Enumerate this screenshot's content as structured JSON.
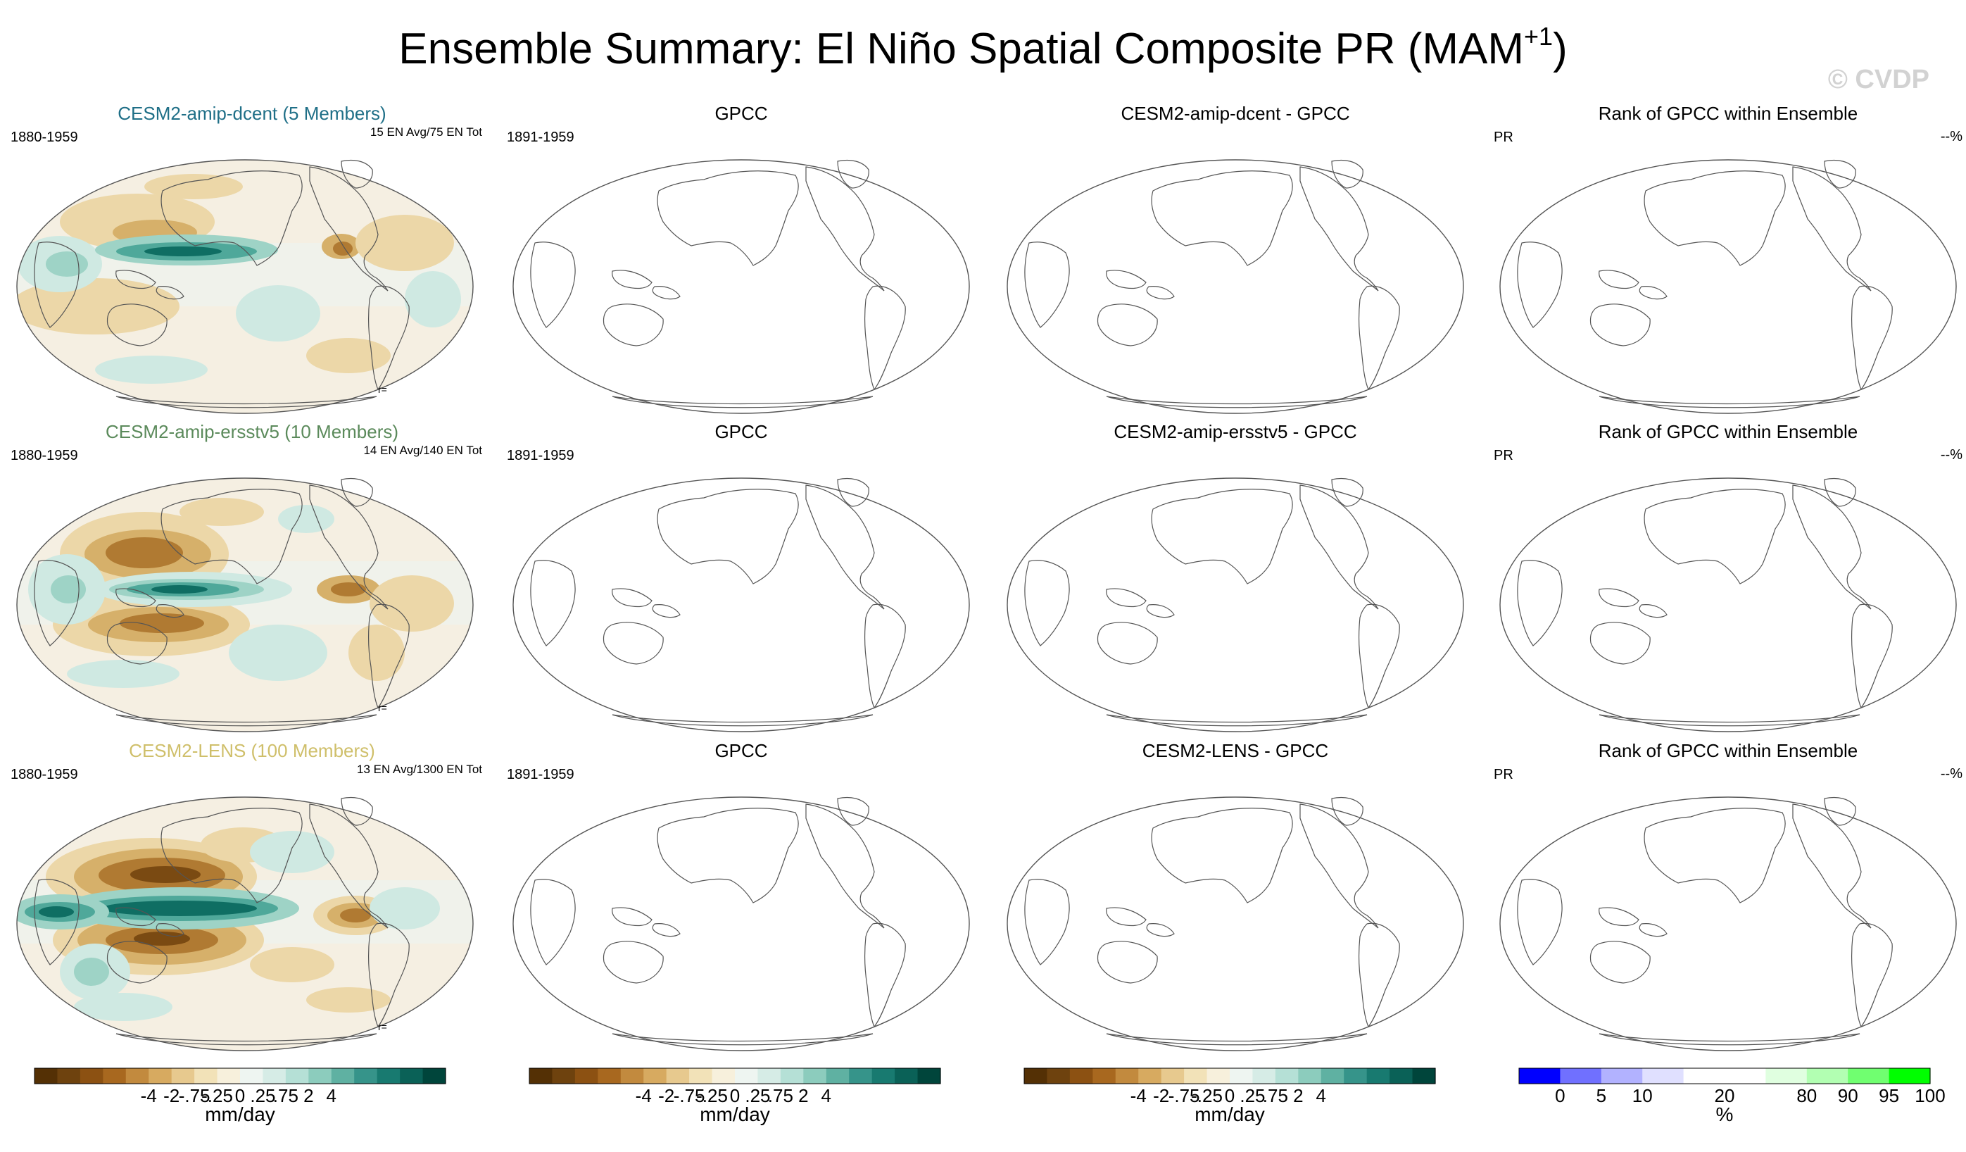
{
  "title": "Ensemble Summary: El Niño Spatial Composite PR (MAM",
  "title_sup": "+1",
  "title_close": ")",
  "watermark": "© CVDP",
  "rows": [
    {
      "model": {
        "title": "CESM2-amip-dcent (5 Members)",
        "title_color": "#1f6f87",
        "years": "1880-1959",
        "stats": "15 EN Avg/75 EN Tot",
        "corr": "r="
      },
      "obs": {
        "title": "GPCC",
        "years": "1891-1959"
      },
      "diff": {
        "title": "CESM2-amip-dcent - GPCC"
      },
      "rank": {
        "title": "Rank of GPCC within Ensemble",
        "left": "PR",
        "right": "--%"
      }
    },
    {
      "model": {
        "title": "CESM2-amip-ersstv5 (10 Members)",
        "title_color": "#5b8a5b",
        "years": "1880-1959",
        "stats": "14 EN Avg/140 EN Tot",
        "corr": "r="
      },
      "obs": {
        "title": "GPCC",
        "years": "1891-1959"
      },
      "diff": {
        "title": "CESM2-amip-ersstv5 - GPCC"
      },
      "rank": {
        "title": "Rank of GPCC within Ensemble",
        "left": "PR",
        "right": "--%"
      }
    },
    {
      "model": {
        "title": "CESM2-LENS (100 Members)",
        "title_color": "#cfbf6a",
        "years": "1880-1959",
        "stats": "13 EN Avg/1300 EN Tot",
        "corr": "r="
      },
      "obs": {
        "title": "GPCC",
        "years": "1891-1959"
      },
      "diff": {
        "title": "CESM2-LENS - GPCC"
      },
      "rank": {
        "title": "Rank of GPCC within Ensemble",
        "left": "PR",
        "right": "--%"
      }
    }
  ],
  "pr_colorbar": {
    "unit": "mm/day",
    "colors": [
      "#543005",
      "#6e420e",
      "#8c5112",
      "#a8681f",
      "#c28a3e",
      "#d7aa60",
      "#e7c98e",
      "#f2e2b8",
      "#f7f0dc",
      "#eef5f1",
      "#d6ece6",
      "#b5e0d6",
      "#8cccbd",
      "#5fb1a2",
      "#36948a",
      "#187a70",
      "#0a6157",
      "#00453b"
    ],
    "labels": [
      "-4",
      "-2",
      "-.75",
      "-.25",
      "0",
      ".25",
      ".75",
      "2",
      "4"
    ]
  },
  "rank_colorbar": {
    "unit": "%",
    "colors": [
      "#0000ff",
      "#7070ff",
      "#b2b2ff",
      "#e0e0ff",
      "#ffffff",
      "#ffffff",
      "#e0ffe0",
      "#b2ffb2",
      "#70ff70",
      "#00ff00"
    ],
    "labels": [
      "0",
      "5",
      "10",
      "20",
      "80",
      "90",
      "95",
      "100"
    ]
  }
}
